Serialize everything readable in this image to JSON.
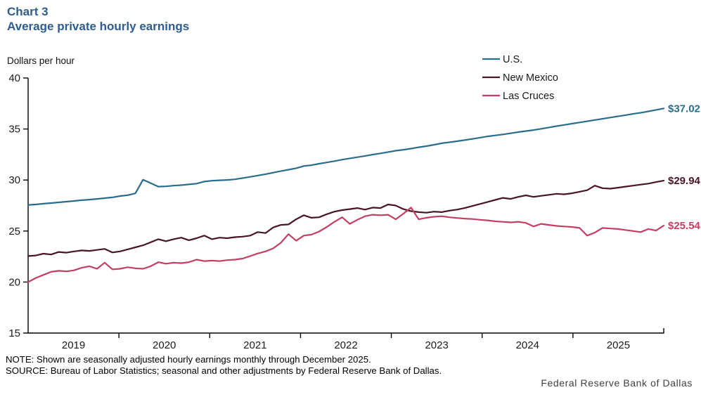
{
  "header": {
    "chart_label": "Chart 3",
    "title": "Average private hourly earnings",
    "units": "Dollars per hour"
  },
  "chart_data": {
    "type": "line",
    "title": "Average private hourly earnings",
    "ylabel": "Dollars per hour",
    "x_unit": "month",
    "x_start": "2019-01",
    "x_end": "2025-12",
    "x_tick_years": [
      "2019",
      "2020",
      "2021",
      "2022",
      "2023",
      "2024",
      "2025"
    ],
    "ylim": [
      15,
      40
    ],
    "y_ticks": [
      15,
      20,
      25,
      30,
      35,
      40
    ],
    "grid": false,
    "legend_position": "top-right",
    "series": [
      {
        "name": "U.S.",
        "color": "#2a6d8a",
        "end_label": "$37.02",
        "values": [
          27.56,
          27.6,
          27.68,
          27.74,
          27.81,
          27.88,
          27.95,
          28.02,
          28.08,
          28.15,
          28.22,
          28.3,
          28.43,
          28.51,
          28.69,
          30.03,
          29.7,
          29.35,
          29.38,
          29.45,
          29.5,
          29.57,
          29.65,
          29.85,
          29.93,
          29.97,
          30.01,
          30.07,
          30.19,
          30.31,
          30.44,
          30.57,
          30.72,
          30.87,
          31.01,
          31.16,
          31.37,
          31.45,
          31.6,
          31.72,
          31.85,
          32.0,
          32.12,
          32.24,
          32.36,
          32.49,
          32.61,
          32.74,
          32.87,
          32.97,
          33.08,
          33.21,
          33.32,
          33.46,
          33.6,
          33.7,
          33.8,
          33.91,
          34.03,
          34.15,
          34.28,
          34.37,
          34.47,
          34.58,
          34.7,
          34.8,
          34.9,
          35.02,
          35.15,
          35.28,
          35.4,
          35.52,
          35.64,
          35.76,
          35.88,
          36.0,
          36.12,
          36.24,
          36.36,
          36.48,
          36.6,
          36.73,
          36.87,
          37.02
        ]
      },
      {
        "name": "New Mexico",
        "color": "#471527",
        "end_label": "$29.94",
        "values": [
          22.55,
          22.6,
          22.78,
          22.7,
          22.95,
          22.88,
          23.0,
          23.1,
          23.05,
          23.15,
          23.25,
          22.9,
          23.0,
          23.2,
          23.4,
          23.6,
          23.9,
          24.2,
          24.0,
          24.2,
          24.35,
          24.1,
          24.3,
          24.55,
          24.2,
          24.35,
          24.3,
          24.4,
          24.45,
          24.55,
          24.9,
          24.8,
          25.35,
          25.6,
          25.65,
          26.15,
          26.55,
          26.3,
          26.35,
          26.65,
          26.9,
          27.05,
          27.15,
          27.25,
          27.1,
          27.3,
          27.25,
          27.6,
          27.5,
          27.15,
          26.95,
          26.85,
          26.8,
          26.9,
          26.85,
          27.0,
          27.1,
          27.25,
          27.45,
          27.65,
          27.85,
          28.05,
          28.25,
          28.15,
          28.35,
          28.5,
          28.35,
          28.45,
          28.55,
          28.65,
          28.6,
          28.7,
          28.85,
          29.0,
          29.45,
          29.2,
          29.15,
          29.25,
          29.35,
          29.45,
          29.55,
          29.65,
          29.8,
          29.94
        ]
      },
      {
        "name": "Las Cruces",
        "color": "#c23f63",
        "end_label": "$25.54",
        "values": [
          20.0,
          20.4,
          20.7,
          21.0,
          21.1,
          21.05,
          21.15,
          21.4,
          21.55,
          21.3,
          21.9,
          21.25,
          21.3,
          21.45,
          21.35,
          21.3,
          21.55,
          21.95,
          21.8,
          21.9,
          21.85,
          21.95,
          22.2,
          22.05,
          22.1,
          22.05,
          22.15,
          22.2,
          22.3,
          22.55,
          22.8,
          23.0,
          23.3,
          23.85,
          24.7,
          24.05,
          24.55,
          24.65,
          24.95,
          25.4,
          25.9,
          26.35,
          25.7,
          26.1,
          26.45,
          26.6,
          26.55,
          26.6,
          26.15,
          26.7,
          27.3,
          26.15,
          26.3,
          26.4,
          26.45,
          26.35,
          26.28,
          26.22,
          26.18,
          26.1,
          26.05,
          25.95,
          25.9,
          25.85,
          25.9,
          25.8,
          25.45,
          25.7,
          25.6,
          25.5,
          25.45,
          25.4,
          25.3,
          24.55,
          24.85,
          25.3,
          25.25,
          25.2,
          25.1,
          25.0,
          24.9,
          25.2,
          25.05,
          25.54
        ]
      }
    ]
  },
  "note": "NOTE: Shown are seasonally adjusted hourly earnings monthly through December 2025.",
  "source": "SOURCE: Bureau of Labor Statistics; seasonal and other adjustments by Federal Reserve Bank of Dallas.",
  "footer": {
    "org": "Federal Reserve Bank of Dallas"
  },
  "colors": {
    "title": "#2e5c8f",
    "axis": "#000000",
    "text": "#1a1a1a"
  }
}
